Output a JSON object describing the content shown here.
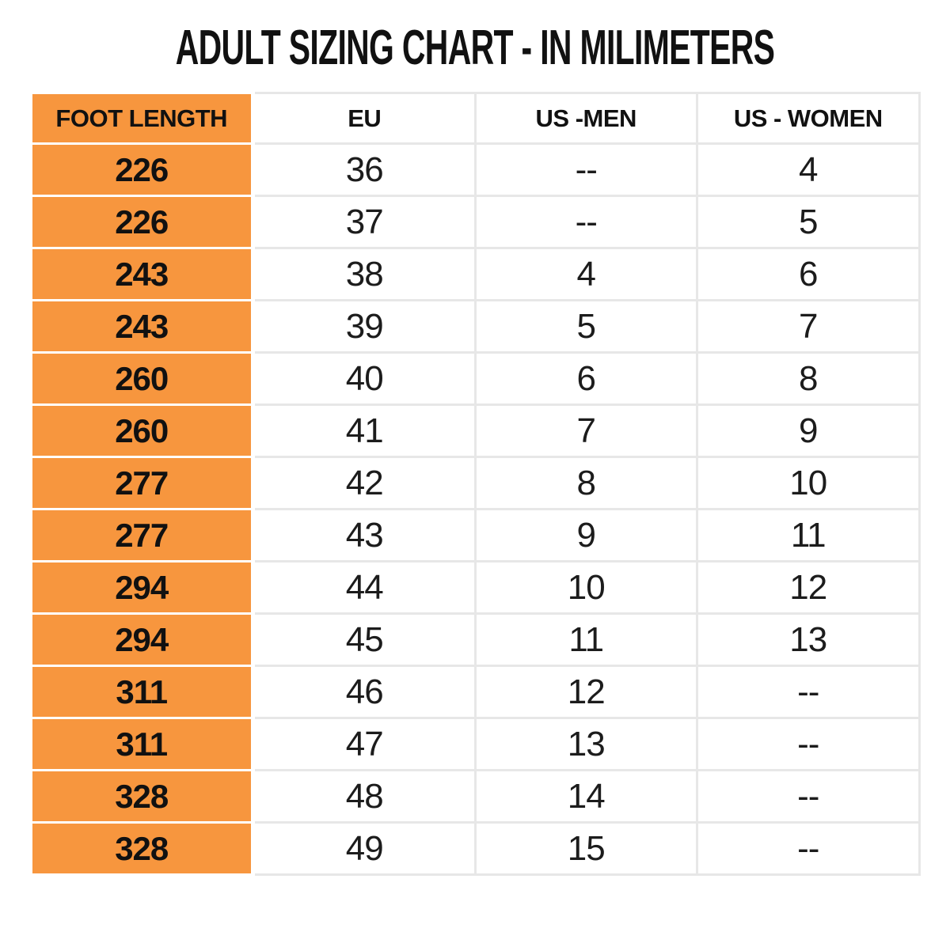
{
  "title": "ADULT SIZING CHART - IN MILIMETERS",
  "chart_data": {
    "type": "table",
    "title": "ADULT SIZING CHART - IN MILIMETERS",
    "columns": [
      "FOOT LENGTH",
      "EU",
      "US -MEN",
      "US - WOMEN"
    ],
    "rows": [
      [
        "226",
        "36",
        "--",
        "4"
      ],
      [
        "226",
        "37",
        "--",
        "5"
      ],
      [
        "243",
        "38",
        "4",
        "6"
      ],
      [
        "243",
        "39",
        "5",
        "7"
      ],
      [
        "260",
        "40",
        "6",
        "8"
      ],
      [
        "260",
        "41",
        "7",
        "9"
      ],
      [
        "277",
        "42",
        "8",
        "10"
      ],
      [
        "277",
        "43",
        "9",
        "11"
      ],
      [
        "294",
        "44",
        "10",
        "12"
      ],
      [
        "294",
        "45",
        "11",
        "13"
      ],
      [
        "311",
        "46",
        "12",
        "--"
      ],
      [
        "311",
        "47",
        "13",
        "--"
      ],
      [
        "328",
        "48",
        "14",
        "--"
      ],
      [
        "328",
        "49",
        "15",
        "--"
      ]
    ],
    "layout": {
      "first_column_highlighted": true,
      "grid": true,
      "legend": "none"
    }
  },
  "colors": {
    "accent_orange": "#F7963E",
    "border_gray": "#E7E7E7",
    "divider_white": "#FFFFFF",
    "text_black": "#111111",
    "page_background": "#FFFFFF"
  }
}
